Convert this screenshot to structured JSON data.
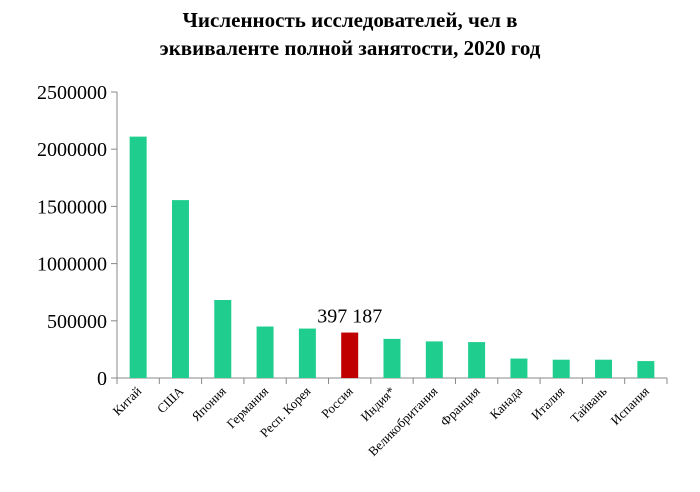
{
  "chart_data": {
    "type": "bar",
    "title_line1": "Численность исследователей, чел в",
    "title_line2": "эквиваленте полной занятости, 2020 год",
    "xlabel": "",
    "ylabel": "",
    "ylim": [
      0,
      2500000
    ],
    "yticks": [
      "0",
      "500000",
      "1000000",
      "1500000",
      "2000000",
      "2500000"
    ],
    "grid": false,
    "categories": [
      "Китай",
      "США",
      "Япония",
      "Германия",
      "Респ. Корея",
      "Россия",
      "Индия*",
      "Великобритания",
      "Франция",
      "Канада",
      "Италия",
      "Тайвань",
      "Испания"
    ],
    "values": [
      2110000,
      1555000,
      682000,
      450000,
      432000,
      397187,
      342000,
      320000,
      314000,
      170000,
      160000,
      160000,
      148000
    ],
    "colors": [
      "#1fce8f",
      "#1fce8f",
      "#1fce8f",
      "#1fce8f",
      "#1fce8f",
      "#c00000",
      "#1fce8f",
      "#1fce8f",
      "#1fce8f",
      "#1fce8f",
      "#1fce8f",
      "#1fce8f",
      "#1fce8f"
    ],
    "data_labels": [
      {
        "index": 5,
        "text": "397 187"
      }
    ]
  }
}
